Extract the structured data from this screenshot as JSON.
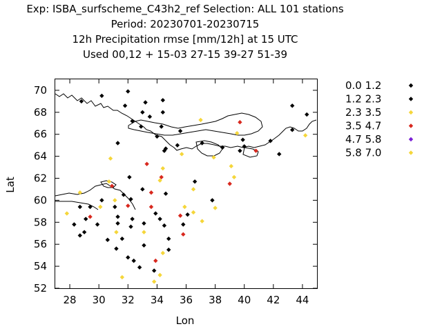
{
  "title_lines": [
    "Exp: ISBA_surfscheme_C43h2_ref   Selection: ALL     101 stations",
    "Period: 20230701-20230715",
    "12h Precipitation rmse [mm/12h] at  15 UTC",
    "Used  00,12  + 15-03 27-15 39-27 51-39"
  ],
  "chart_data": {
    "type": "scatter",
    "xlabel": "Lon",
    "ylabel": "Lat",
    "xlim": [
      27,
      45
    ],
    "ylim": [
      52,
      71
    ],
    "xticks": [
      28,
      30,
      32,
      34,
      36,
      38,
      40,
      42,
      44
    ],
    "yticks": [
      52,
      54,
      56,
      58,
      60,
      62,
      64,
      66,
      68,
      70
    ],
    "grid": false,
    "legend_position": "right",
    "series": [
      {
        "name": "0.0 1.2",
        "color": "#000000",
        "points": [
          [
            28.8,
            69.0
          ],
          [
            30.2,
            69.5
          ],
          [
            31.8,
            68.6
          ],
          [
            32.0,
            69.9
          ],
          [
            33.2,
            68.9
          ],
          [
            33.0,
            68.0
          ],
          [
            33.5,
            67.6
          ],
          [
            34.4,
            69.1
          ],
          [
            34.4,
            68.0
          ],
          [
            32.3,
            67.2
          ],
          [
            32.9,
            66.7
          ],
          [
            34.0,
            65.8
          ],
          [
            34.3,
            66.7
          ],
          [
            35.6,
            66.3
          ],
          [
            37.1,
            65.2
          ],
          [
            38.5,
            64.8
          ],
          [
            39.9,
            65.5
          ],
          [
            40.0,
            64.9
          ],
          [
            39.7,
            64.5
          ],
          [
            42.4,
            64.2
          ],
          [
            41.8,
            65.4
          ],
          [
            43.3,
            68.6
          ],
          [
            44.3,
            67.8
          ],
          [
            43.3,
            66.4
          ],
          [
            35.4,
            65.0
          ],
          [
            34.6,
            64.7
          ],
          [
            34.5,
            64.5
          ],
          [
            31.3,
            65.2
          ],
          [
            32.1,
            62.1
          ],
          [
            32.2,
            60.1
          ],
          [
            33.0,
            61.0
          ],
          [
            31.7,
            60.5
          ],
          [
            30.2,
            60.0
          ],
          [
            28.7,
            59.4
          ],
          [
            29.4,
            59.4
          ],
          [
            28.3,
            57.8
          ],
          [
            28.7,
            56.8
          ],
          [
            29.0,
            57.1
          ],
          [
            29.1,
            58.3
          ],
          [
            29.9,
            57.8
          ],
          [
            30.6,
            56.4
          ],
          [
            31.3,
            57.9
          ],
          [
            31.3,
            58.5
          ],
          [
            31.1,
            59.4
          ],
          [
            31.6,
            56.5
          ],
          [
            31.2,
            55.6
          ],
          [
            32.0,
            54.8
          ],
          [
            32.4,
            54.5
          ],
          [
            32.8,
            53.9
          ],
          [
            32.2,
            57.6
          ],
          [
            32.3,
            58.3
          ],
          [
            33.1,
            55.9
          ],
          [
            33.1,
            57.9
          ],
          [
            33.8,
            53.6
          ],
          [
            34.2,
            58.3
          ],
          [
            34.5,
            57.7
          ],
          [
            34.6,
            60.6
          ],
          [
            34.8,
            56.5
          ],
          [
            34.8,
            55.5
          ],
          [
            35.8,
            57.8
          ],
          [
            36.1,
            58.7
          ],
          [
            36.6,
            61.7
          ],
          [
            37.8,
            60.0
          ],
          [
            33.9,
            58.8
          ]
        ]
      },
      {
        "name": "1.2 2.3",
        "color": "#000000",
        "points": []
      },
      {
        "name": "2.3 3.5",
        "color": "#f5d63a",
        "points": [
          [
            27.8,
            58.8
          ],
          [
            28.7,
            60.7
          ],
          [
            30.1,
            59.4
          ],
          [
            30.8,
            63.8
          ],
          [
            30.7,
            61.7
          ],
          [
            31.1,
            60.0
          ],
          [
            31.2,
            57.1
          ],
          [
            31.6,
            53.0
          ],
          [
            33.1,
            57.1
          ],
          [
            33.8,
            52.6
          ],
          [
            34.2,
            53.2
          ],
          [
            34.2,
            61.8
          ],
          [
            34.4,
            62.9
          ],
          [
            34.4,
            55.2
          ],
          [
            35.7,
            64.2
          ],
          [
            35.9,
            59.4
          ],
          [
            36.5,
            61.0
          ],
          [
            36.5,
            58.9
          ],
          [
            37.0,
            67.3
          ],
          [
            37.1,
            58.1
          ],
          [
            37.9,
            63.9
          ],
          [
            38.0,
            59.3
          ],
          [
            39.1,
            63.1
          ],
          [
            39.3,
            62.1
          ],
          [
            39.5,
            66.1
          ],
          [
            44.2,
            65.9
          ]
        ]
      },
      {
        "name": "3.5 4.7",
        "color": "#d8281e",
        "points": [
          [
            29.4,
            58.5
          ],
          [
            30.9,
            61.3
          ],
          [
            32.0,
            59.5
          ],
          [
            33.3,
            63.3
          ],
          [
            33.6,
            60.7
          ],
          [
            33.6,
            59.4
          ],
          [
            34.3,
            62.1
          ],
          [
            33.9,
            54.5
          ],
          [
            35.6,
            58.6
          ],
          [
            35.8,
            56.9
          ],
          [
            39.0,
            61.5
          ],
          [
            39.7,
            67.1
          ],
          [
            40.8,
            64.5
          ]
        ]
      },
      {
        "name": "4.7 5.8",
        "color": "#7a1fd6",
        "points": []
      },
      {
        "name": "5.8 7.0",
        "color": "#f5d63a",
        "points": []
      }
    ]
  }
}
